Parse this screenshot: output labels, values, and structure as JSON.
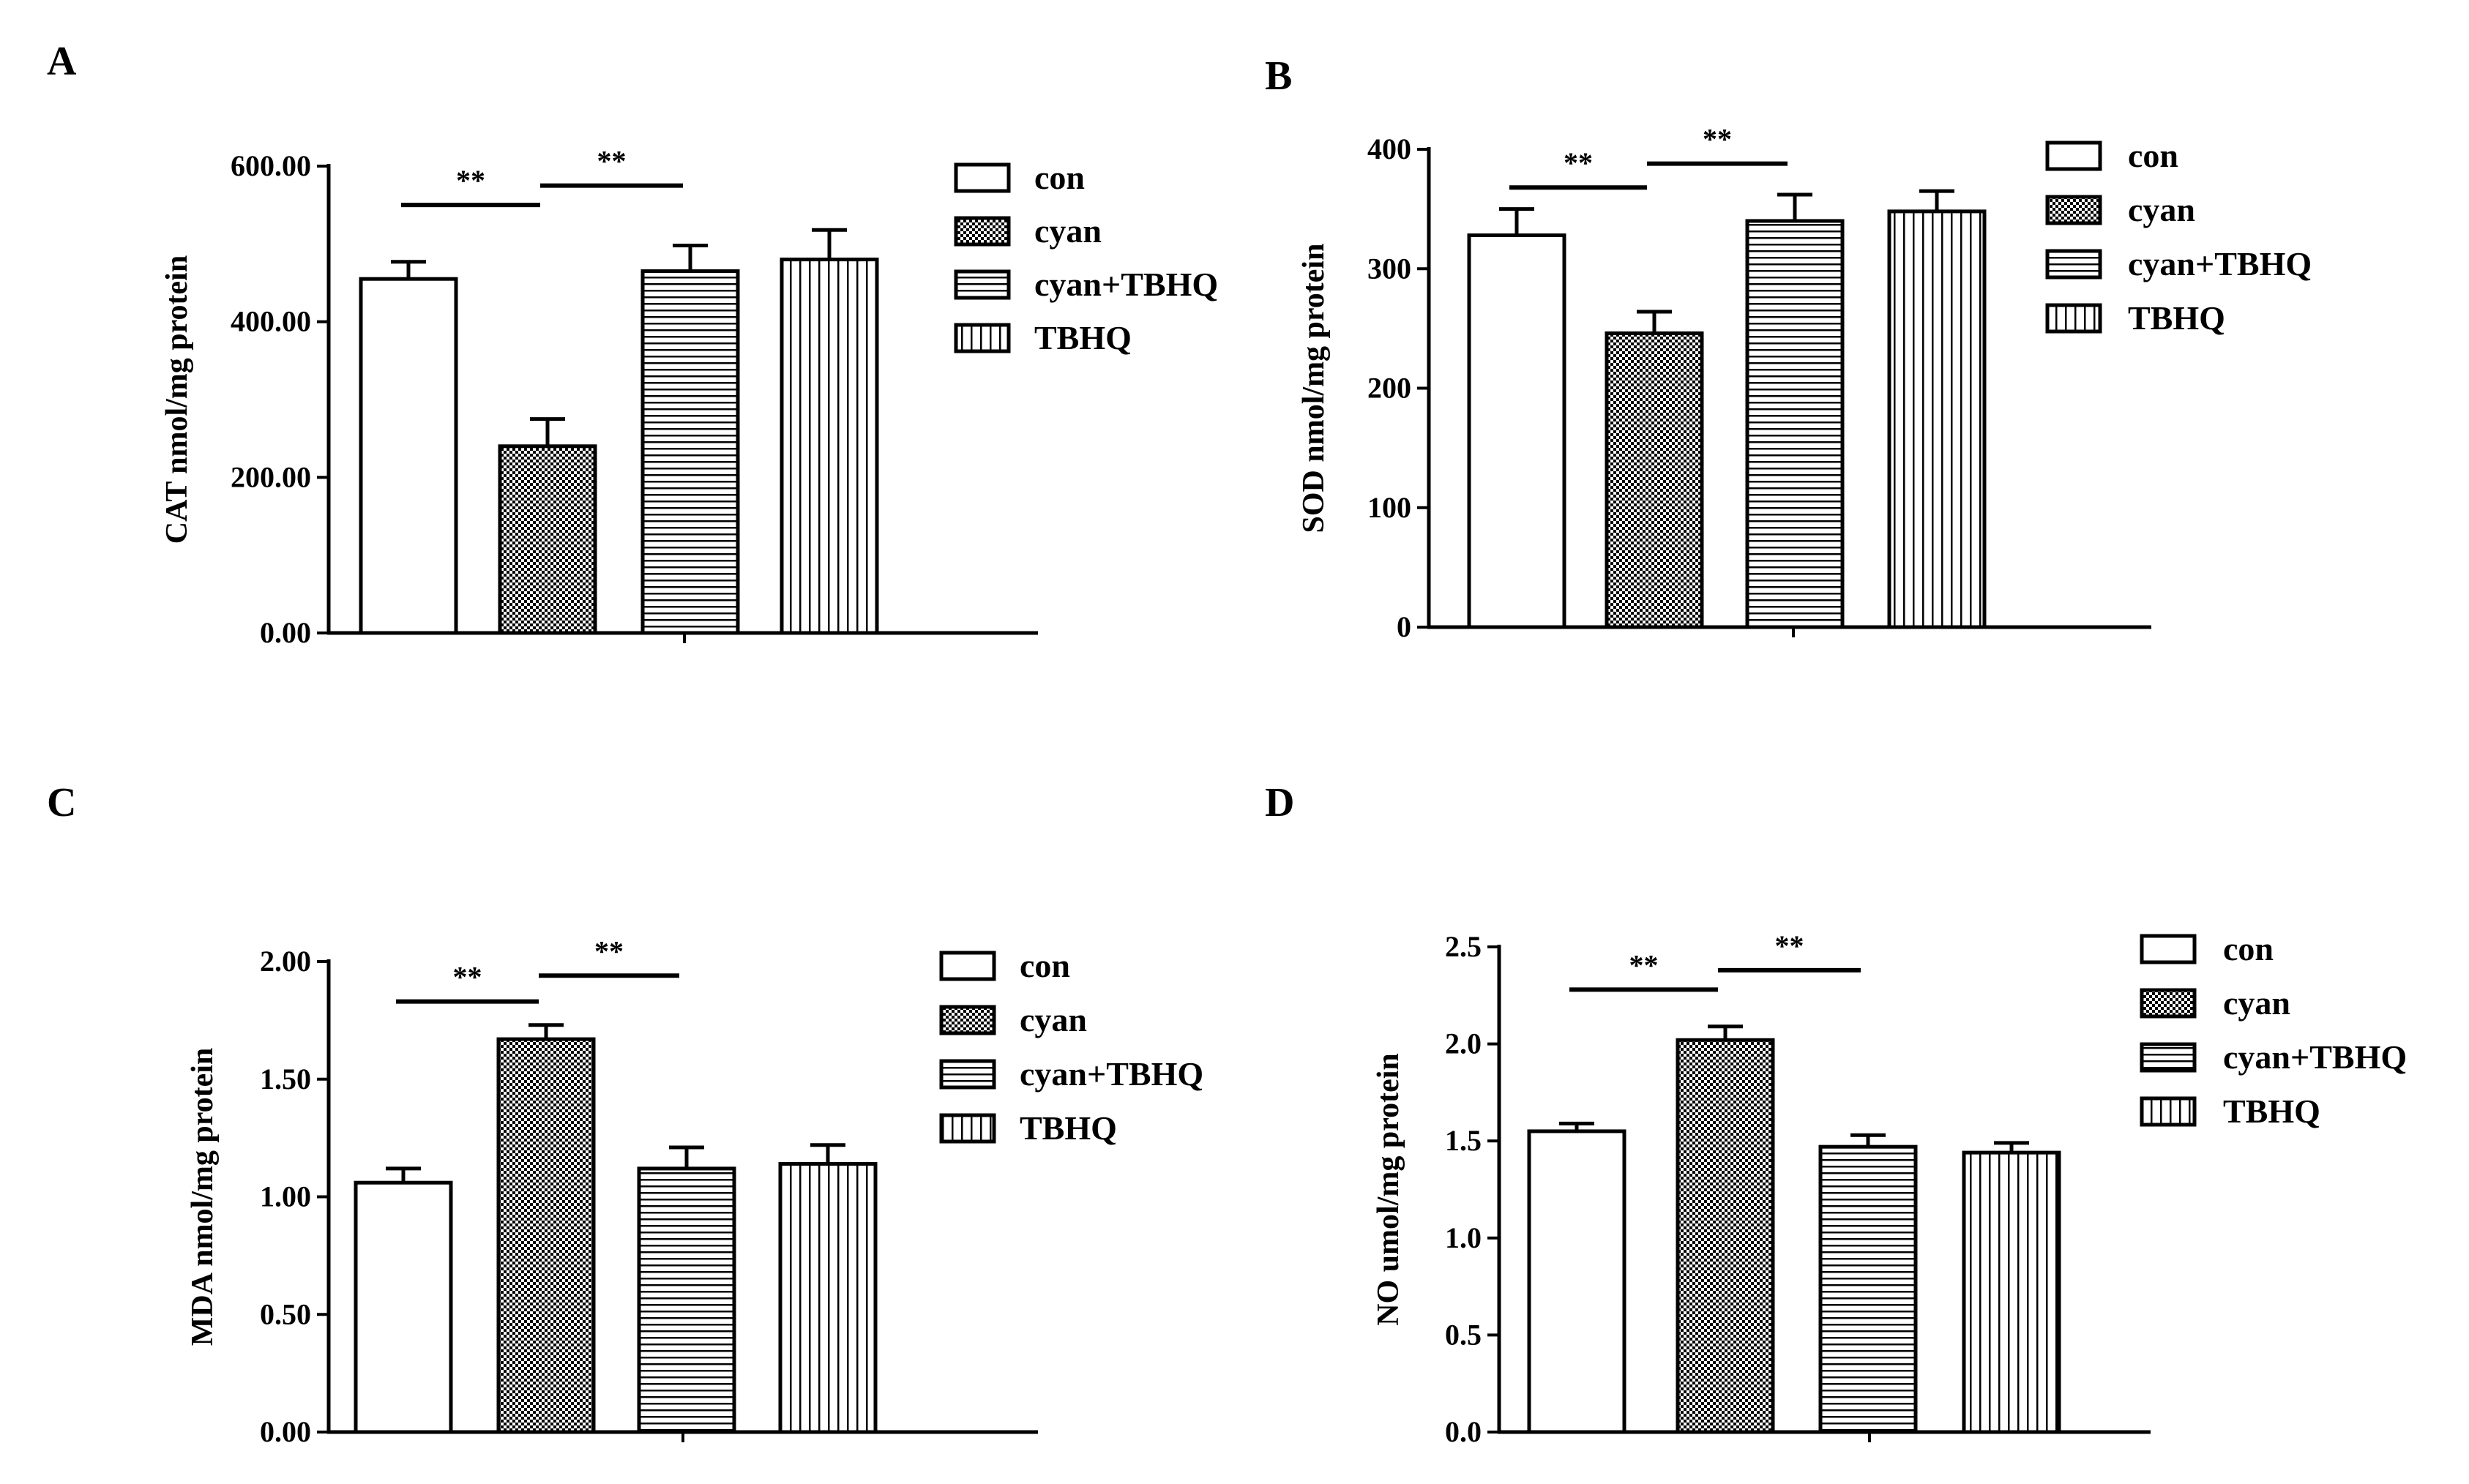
{
  "colors": {
    "ink": "#000000",
    "background": "#ffffff"
  },
  "legend": [
    {
      "label": "con",
      "pattern": "plain"
    },
    {
      "label": "cyan",
      "pattern": "checker"
    },
    {
      "label": "cyan+TBHQ",
      "pattern": "hlines"
    },
    {
      "label": "TBHQ",
      "pattern": "vlines"
    }
  ],
  "chart_data": [
    {
      "panel": "A",
      "type": "bar",
      "categories": [
        "con",
        "cyan",
        "cyan+TBHQ",
        "TBHQ"
      ],
      "values": [
        455,
        240,
        465,
        480
      ],
      "errors": [
        22,
        35,
        33,
        38
      ],
      "ylabel": "CAT nmol/mg protein",
      "ylim": [
        0,
        600
      ],
      "yticks": [
        0,
        200,
        400,
        600
      ],
      "ytick_labels": [
        "0.00",
        "200.00",
        "400.00",
        "600.00"
      ],
      "significance": [
        {
          "from": 0,
          "to": 1,
          "label": "**",
          "y": 550
        },
        {
          "from": 1,
          "to": 2,
          "label": "**",
          "y": 575
        }
      ]
    },
    {
      "panel": "B",
      "type": "bar",
      "categories": [
        "con",
        "cyan",
        "cyan+TBHQ",
        "TBHQ"
      ],
      "values": [
        328,
        246,
        340,
        348
      ],
      "errors": [
        22,
        18,
        22,
        17
      ],
      "ylabel": "SOD nmol/mg protein",
      "ylim": [
        0,
        400
      ],
      "yticks": [
        0,
        100,
        200,
        300,
        400
      ],
      "ytick_labels": [
        "0",
        "100",
        "200",
        "300",
        "400"
      ],
      "significance": [
        {
          "from": 0,
          "to": 1,
          "label": "**",
          "y": 368
        },
        {
          "from": 1,
          "to": 2,
          "label": "**",
          "y": 388
        }
      ]
    },
    {
      "panel": "C",
      "type": "bar",
      "categories": [
        "con",
        "cyan",
        "cyan+TBHQ",
        "TBHQ"
      ],
      "values": [
        1.06,
        1.67,
        1.12,
        1.14
      ],
      "errors": [
        0.06,
        0.06,
        0.09,
        0.08
      ],
      "ylabel": "MDA nmol/mg protein",
      "ylim": [
        0,
        2.0
      ],
      "yticks": [
        0,
        0.5,
        1.0,
        1.5,
        2.0
      ],
      "ytick_labels": [
        "0.00",
        "0.50",
        "1.00",
        "1.50",
        "2.00"
      ],
      "significance": [
        {
          "from": 0,
          "to": 1,
          "label": "**",
          "y": 1.83
        },
        {
          "from": 1,
          "to": 2,
          "label": "**",
          "y": 1.94
        }
      ]
    },
    {
      "panel": "D",
      "type": "bar",
      "categories": [
        "con",
        "cyan",
        "cyan+TBHQ",
        "TBHQ"
      ],
      "values": [
        1.55,
        2.02,
        1.47,
        1.44
      ],
      "errors": [
        0.04,
        0.07,
        0.06,
        0.05
      ],
      "ylabel": "NO  umol/mg protein",
      "ylim": [
        0,
        2.5
      ],
      "yticks": [
        0,
        0.5,
        1.0,
        1.5,
        2.0,
        2.5
      ],
      "ytick_labels": [
        "0.0",
        "0.5",
        "1.0",
        "1.5",
        "2.0",
        "2.5"
      ],
      "significance": [
        {
          "from": 0,
          "to": 1,
          "label": "**",
          "y": 2.28
        },
        {
          "from": 1,
          "to": 2,
          "label": "**",
          "y": 2.38
        }
      ]
    }
  ]
}
